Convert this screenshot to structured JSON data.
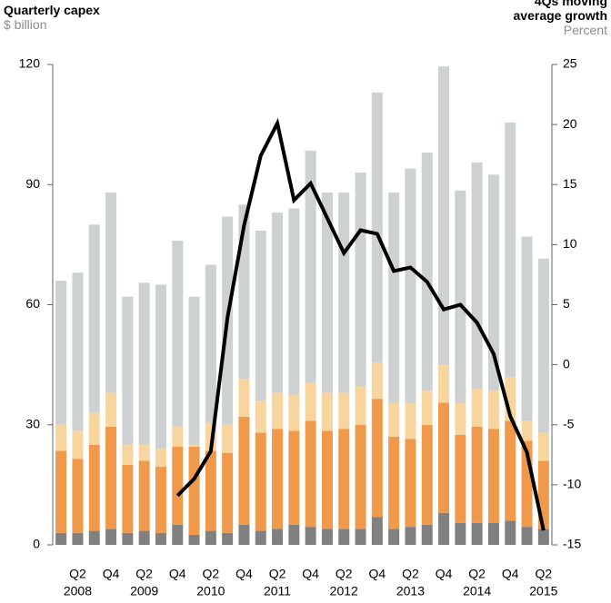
{
  "chart_data": {
    "type": "bar",
    "title": "Quarterly capex",
    "y_label": "$ billion",
    "y2_title": "4Qs moving average growth",
    "y2_label": "Percent",
    "categories": [
      null,
      "Q2",
      null,
      "Q4",
      null,
      "Q2",
      null,
      "Q4",
      null,
      "Q2",
      null,
      "Q4",
      null,
      "Q2",
      null,
      "Q4",
      null,
      "Q2",
      null,
      "Q4",
      null,
      "Q2",
      null,
      "Q4",
      null,
      "Q2",
      null,
      "Q4",
      null,
      "Q2"
    ],
    "years": [
      null,
      "2008",
      null,
      null,
      null,
      "2009",
      null,
      null,
      null,
      "2010",
      null,
      null,
      null,
      "2011",
      null,
      null,
      null,
      "2012",
      null,
      null,
      null,
      "2013",
      null,
      null,
      null,
      "2014",
      null,
      null,
      null,
      "2015"
    ],
    "stacked": true,
    "series": [
      {
        "color": "#808080",
        "values": [
          3,
          3,
          3.5,
          4,
          3,
          3.5,
          3,
          5,
          2.5,
          3.5,
          3,
          5,
          3.5,
          4,
          5,
          4.5,
          4,
          4,
          4,
          7,
          4,
          4.5,
          5,
          8,
          5.5,
          5.5,
          5.5,
          6,
          4.5,
          4
        ]
      },
      {
        "color": "#f0994a",
        "values": [
          20.5,
          18.5,
          21.5,
          25.5,
          17,
          17.5,
          16.5,
          19.5,
          22,
          20,
          20,
          27,
          24.5,
          25,
          23.5,
          26.5,
          24.5,
          25,
          26,
          29.5,
          23,
          22,
          25,
          27.5,
          22,
          24,
          23.5,
          25,
          21.5,
          17
        ]
      },
      {
        "color": "#f8d59f",
        "values": [
          6.5,
          7,
          8,
          8.5,
          5,
          4,
          4.5,
          5,
          0.5,
          7,
          7,
          9.5,
          8,
          9,
          9,
          9.5,
          9.5,
          9,
          9.5,
          9,
          8.5,
          9,
          8.5,
          9.5,
          8,
          9.5,
          9.5,
          11,
          5,
          7
        ]
      },
      {
        "color": "#cdd1d2",
        "values": [
          36,
          39.5,
          47,
          50,
          37,
          40.5,
          41,
          46.5,
          37,
          39.5,
          52,
          43.5,
          42.5,
          45,
          46.5,
          58,
          50,
          50,
          53.5,
          67.5,
          52.5,
          58.5,
          59.5,
          74.5,
          53,
          56.5,
          54,
          63.5,
          46,
          43.5
        ]
      },
      {
        "color": "#000000",
        "axis": "y2",
        "type": "line",
        "values": [
          null,
          null,
          null,
          null,
          null,
          null,
          null,
          -10.9,
          -9.5,
          -7.2,
          3.9,
          11.6,
          17.4,
          20.1,
          13.7,
          15.1,
          12.2,
          9.3,
          11.2,
          10.9,
          7.8,
          8.1,
          6.9,
          4.6,
          5.0,
          3.5,
          0.9,
          -4.3,
          -7.3,
          -13.8
        ]
      }
    ],
    "ylim": [
      0,
      120
    ],
    "yticks": [
      0,
      30,
      60,
      90,
      120
    ],
    "y2lim": [
      -15,
      25
    ],
    "y2ticks": [
      25,
      20,
      15,
      10,
      5,
      0,
      -5,
      -10,
      -15
    ]
  }
}
